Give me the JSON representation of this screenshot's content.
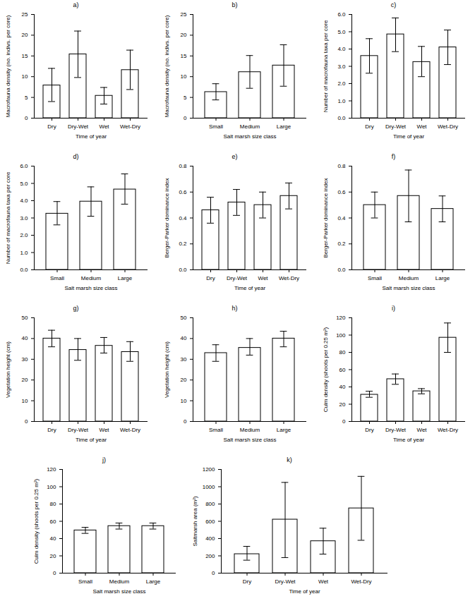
{
  "chart_data": [
    {
      "type": "bar",
      "title": "a)",
      "xlabel": "Time of year",
      "ylabel": "Macrofauna density (no. indivs. per core)",
      "color": "#ffffff",
      "categories": [
        "Dry",
        "Dry-Wet",
        "Wet",
        "Wet-Dry"
      ],
      "values": [
        7.9,
        15.4,
        5.4,
        11.6
      ],
      "error_lower": [
        4.0,
        9.8,
        3.4,
        6.9
      ],
      "error_upper": [
        12.0,
        21.0,
        7.4,
        16.4
      ],
      "ylim": [
        0,
        25
      ],
      "yticks": [
        0,
        5,
        10,
        15,
        20,
        25
      ]
    },
    {
      "type": "bar",
      "title": "b)",
      "xlabel": "Salt marsh size class",
      "ylabel": "Macrofauna density (no. indivs. per core)",
      "color": "#ffffff",
      "categories": [
        "Small",
        "Medium",
        "Large"
      ],
      "values": [
        6.3,
        11.1,
        12.7
      ],
      "error_lower": [
        4.4,
        7.2,
        7.7
      ],
      "error_upper": [
        8.3,
        15.1,
        17.7
      ],
      "ylim": [
        0,
        25
      ],
      "yticks": [
        0,
        5,
        10,
        15,
        20,
        25
      ]
    },
    {
      "type": "bar",
      "title": "c)",
      "xlabel": "Time of year",
      "ylabel": "Number of macrofauna taxa per core",
      "color": "#ffffff",
      "categories": [
        "Dry",
        "Dry-Wet",
        "Wet",
        "Wet-Dry"
      ],
      "values": [
        3.6,
        4.85,
        3.25,
        4.1
      ],
      "error_lower": [
        2.6,
        3.85,
        2.4,
        3.1
      ],
      "error_upper": [
        4.6,
        5.8,
        4.15,
        5.1
      ],
      "ylim": [
        0,
        6
      ],
      "yticks": [
        {
          "value": 0,
          "label": "0.0"
        },
        {
          "value": 1,
          "label": "1.0"
        },
        {
          "value": 2,
          "label": "2.0"
        },
        {
          "value": 3,
          "label": "3.0"
        },
        {
          "value": 4,
          "label": "4.0"
        },
        {
          "value": 5,
          "label": "5.0"
        },
        {
          "value": 6,
          "label": "6.0"
        }
      ]
    },
    {
      "type": "bar",
      "title": "d)",
      "xlabel": "Salt marsh size class",
      "ylabel": "Number of macrofauna taxa per core",
      "color": "#ffffff",
      "categories": [
        "Small",
        "Medium",
        "Large"
      ],
      "values": [
        3.25,
        3.95,
        4.65
      ],
      "error_lower": [
        2.6,
        3.1,
        3.8
      ],
      "error_upper": [
        3.95,
        4.8,
        5.55
      ],
      "ylim": [
        0,
        6
      ],
      "yticks": [
        {
          "value": 0,
          "label": "0.0"
        },
        {
          "value": 1,
          "label": "1.0"
        },
        {
          "value": 2,
          "label": "2.0"
        },
        {
          "value": 3,
          "label": "3.0"
        },
        {
          "value": 4,
          "label": "4.0"
        },
        {
          "value": 5,
          "label": "5.0"
        },
        {
          "value": 6,
          "label": "6.0"
        }
      ]
    },
    {
      "type": "bar",
      "title": "e)",
      "xlabel": "Time of year",
      "ylabel": "Berger-Parker dominance index",
      "color": "#ffffff",
      "categories": [
        "Dry",
        "Dry-Wet",
        "Wet",
        "Wet-Dry"
      ],
      "values": [
        0.46,
        0.52,
        0.5,
        0.57
      ],
      "error_lower": [
        0.36,
        0.42,
        0.4,
        0.47
      ],
      "error_upper": [
        0.56,
        0.62,
        0.6,
        0.67
      ],
      "ylim": [
        0,
        0.8
      ],
      "yticks": [
        {
          "value": 0,
          "label": "0.0"
        },
        0.2,
        0.4,
        0.6,
        0.8
      ]
    },
    {
      "type": "bar",
      "title": "f)",
      "xlabel": "Salt marsh size class",
      "ylabel": "Berger-Parker dominance index",
      "color": "#ffffff",
      "categories": [
        "Small",
        "Medium",
        "Large"
      ],
      "values": [
        0.5,
        0.57,
        0.47
      ],
      "error_lower": [
        0.4,
        0.37,
        0.37
      ],
      "error_upper": [
        0.6,
        0.77,
        0.57
      ],
      "ylim": [
        0,
        0.8
      ],
      "yticks": [
        {
          "value": 0,
          "label": "0.0"
        },
        0.2,
        0.4,
        0.6,
        0.8
      ]
    },
    {
      "type": "bar",
      "title": "g)",
      "xlabel": "Time of year",
      "ylabel": "Vegetation height (cm)",
      "color": "#ffffff",
      "categories": [
        "Dry",
        "Dry-Wet",
        "Wet",
        "Wet-Dry"
      ],
      "values": [
        40,
        34.5,
        36.5,
        33.5
      ],
      "error_lower": [
        36,
        29.5,
        33,
        29
      ],
      "error_upper": [
        44,
        40,
        40.5,
        38.5
      ],
      "ylim": [
        0,
        50
      ],
      "yticks": [
        0,
        10,
        20,
        30,
        40,
        50
      ]
    },
    {
      "type": "bar",
      "title": "h)",
      "xlabel": "Salt marsh size class",
      "ylabel": "Vegetation height (cm)",
      "color": "#ffffff",
      "categories": [
        "Small",
        "Medium",
        "Large"
      ],
      "values": [
        33,
        35.5,
        40
      ],
      "error_lower": [
        29,
        32,
        36
      ],
      "error_upper": [
        37,
        40,
        43.5
      ],
      "ylim": [
        0,
        50
      ],
      "yticks": [
        0,
        10,
        20,
        30,
        40,
        50
      ]
    },
    {
      "type": "bar",
      "title": "i)",
      "xlabel": "Time of year",
      "ylabel": "Culm density (shoots per 0.25 m²)",
      "color": "#ffffff",
      "categories": [
        "Dry",
        "Dry-Wet",
        "Wet",
        "Wet-Dry"
      ],
      "values": [
        31,
        49,
        35,
        97
      ],
      "error_lower": [
        28,
        43,
        32,
        80
      ],
      "error_upper": [
        35,
        55,
        38,
        114
      ],
      "ylim": [
        0,
        120
      ],
      "yticks": [
        0,
        20,
        40,
        60,
        80,
        100,
        120
      ]
    },
    {
      "type": "bar",
      "title": "j)",
      "xlabel": "Salt marsh size class",
      "ylabel": "Culm density (shoots per 0.25 m²)",
      "color": "#ffffff",
      "categories": [
        "Small",
        "Medium",
        "Large"
      ],
      "values": [
        49.5,
        54.5,
        54.5
      ],
      "error_lower": [
        46,
        51,
        51
      ],
      "error_upper": [
        53,
        58,
        58
      ],
      "ylim": [
        0,
        120
      ],
      "yticks": [
        0,
        20,
        40,
        60,
        80,
        100,
        120
      ]
    },
    {
      "type": "bar",
      "title": "k)",
      "xlabel": "Time of year",
      "ylabel": "Saltmarsh area (m²)",
      "color": "#ffffff",
      "categories": [
        "Dry",
        "Dry-Wet",
        "Wet",
        "Wet-Dry"
      ],
      "values": [
        220,
        620,
        370,
        750
      ],
      "error_lower": [
        150,
        180,
        220,
        380
      ],
      "error_upper": [
        310,
        1050,
        520,
        1120
      ],
      "ylim": [
        0,
        1200
      ],
      "yticks": [
        0,
        200,
        400,
        600,
        800,
        1000,
        1200
      ]
    }
  ]
}
